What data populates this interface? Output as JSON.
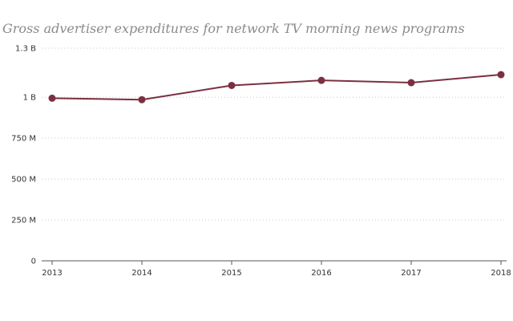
{
  "chart_data": {
    "type": "line",
    "title": "Gross advertiser expenditures for network TV morning news programs",
    "xlabel": "",
    "ylabel": "",
    "categories": [
      "2013",
      "2014",
      "2015",
      "2016",
      "2017",
      "2018"
    ],
    "series": [
      {
        "values": [
          994000000,
          985000000,
          1072000000,
          1103000000,
          1089000000,
          1138000000
        ]
      }
    ],
    "ylim": [
      0,
      1300000000
    ],
    "yticks": [
      0,
      250000000,
      500000000,
      750000000,
      1000000000,
      1300000000
    ],
    "ytick_labels": [
      "0",
      "250 M",
      "500 M",
      "750 M",
      "1 B",
      "1.3 B"
    ],
    "grid": true,
    "legend": "none",
    "colors": {
      "line": "#7b3041",
      "marker": "#7b3041",
      "grid": "#c8c8c8",
      "axis": "#555555",
      "title": "#8a8a8a"
    }
  }
}
